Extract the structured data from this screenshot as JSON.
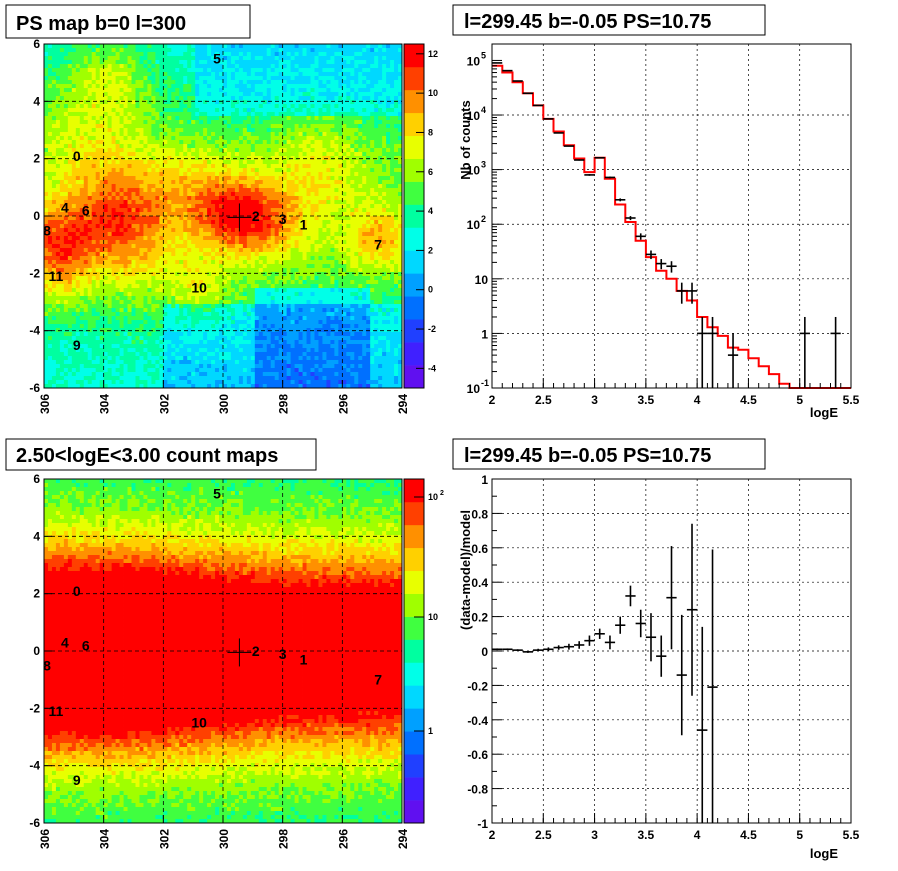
{
  "colors": {
    "palette": [
      "#6010f0",
      "#4020ff",
      "#2040ff",
      "#0070ff",
      "#00a0ff",
      "#00d8ff",
      "#00ffe8",
      "#00ffa0",
      "#40ff40",
      "#a0ff00",
      "#e8ff00",
      "#ffd000",
      "#ff9000",
      "#ff4000",
      "#ff0000"
    ],
    "data_line": "#000000",
    "model_line": "#ff0000"
  },
  "panels": [
    {
      "id": "ps-map",
      "title": "PS map b=0 l=300",
      "x_ticks": [
        "306",
        "304",
        "302",
        "300",
        "298",
        "296",
        "294"
      ],
      "y_ticks": [
        "6",
        "4",
        "2",
        "0",
        "-2",
        "-4",
        "-6"
      ],
      "colorbar_ticks": [
        "12",
        "10",
        "8",
        "6",
        "4",
        "2",
        "0",
        "-2",
        "-4"
      ],
      "sources": [
        {
          "label": "5",
          "l": 300.2,
          "b": 5.5
        },
        {
          "label": "0",
          "l": 304.9,
          "b": 2.1
        },
        {
          "label": "4",
          "l": 305.3,
          "b": 0.3
        },
        {
          "label": "6",
          "l": 304.6,
          "b": 0.2
        },
        {
          "label": "8",
          "l": 305.9,
          "b": -0.5
        },
        {
          "label": "2",
          "l": 298.9,
          "b": 0.0
        },
        {
          "label": "3",
          "l": 298.0,
          "b": -0.1
        },
        {
          "label": "1",
          "l": 297.3,
          "b": -0.3
        },
        {
          "label": "7",
          "l": 294.8,
          "b": -1.0
        },
        {
          "label": "11",
          "l": 305.6,
          "b": -2.1
        },
        {
          "label": "10",
          "l": 300.8,
          "b": -2.5
        },
        {
          "label": "9",
          "l": 304.9,
          "b": -4.5
        }
      ],
      "cross": {
        "l": 299.45,
        "b": -0.05
      }
    },
    {
      "id": "count-map",
      "title": "2.50<logE<3.00 count maps",
      "x_ticks": [
        "306",
        "304",
        "302",
        "300",
        "298",
        "296",
        "294"
      ],
      "y_ticks": [
        "6",
        "4",
        "2",
        "0",
        "-2",
        "-4",
        "-6"
      ],
      "colorbar_ticks": [
        "10",
        "10",
        "1"
      ],
      "colorbar_exps": [
        "2",
        "",
        ""
      ]
    }
  ],
  "chart_data": [
    {
      "type": "line",
      "title": "l=299.45 b=-0.05 PS=10.75",
      "xlabel": "logE",
      "ylabel": "Nb of counts",
      "xlim": [
        2,
        5.5
      ],
      "ylim": [
        0.1,
        200000
      ],
      "log_y": true,
      "grid": true,
      "x_ticks": [
        "2",
        "2.5",
        "3",
        "3.5",
        "4",
        "4.5",
        "5",
        "5.5"
      ],
      "y_ticks": [
        {
          "base": "10",
          "exp": "5"
        },
        {
          "base": "10",
          "exp": "4"
        },
        {
          "base": "10",
          "exp": "3"
        },
        {
          "base": "10",
          "exp": "2"
        },
        {
          "base": "10",
          "exp": ""
        },
        {
          "base": "1",
          "exp": ""
        },
        {
          "base": "10",
          "exp": "-1"
        }
      ],
      "series": [
        {
          "x": [
            2.05,
            2.15,
            2.25,
            2.35,
            2.45,
            2.55,
            2.65,
            2.75,
            2.85,
            2.95,
            3.05,
            3.15,
            3.25,
            3.35,
            3.45,
            3.55,
            3.65,
            3.75,
            3.85,
            3.95,
            4.05,
            4.15,
            4.35,
            5.05,
            5.35
          ],
          "y": [
            90000,
            65000,
            42000,
            25000,
            15000,
            8500,
            4700,
            2700,
            1500,
            800,
            1650,
            720,
            280,
            130,
            60,
            28,
            19,
            17,
            6,
            6,
            1,
            1,
            0.4,
            1,
            1
          ],
          "yerr": [
            300,
            255,
            205,
            158,
            122,
            92,
            69,
            52,
            39,
            28,
            41,
            27,
            17,
            11,
            8,
            5,
            4,
            4,
            2.5,
            2.5,
            1,
            1,
            0.6,
            1,
            1
          ]
        },
        {
          "bins": [
            2.0,
            2.1,
            2.2,
            2.3,
            2.4,
            2.5,
            2.6,
            2.7,
            2.8,
            2.9,
            3.0,
            3.1,
            3.2,
            3.3,
            3.4,
            3.5,
            3.6,
            3.7,
            3.8,
            3.9,
            4.0,
            4.1,
            4.2,
            4.3,
            4.4,
            4.5,
            4.6,
            4.7,
            4.8,
            4.9,
            5.0,
            5.1,
            5.2,
            5.3,
            5.4,
            5.5
          ],
          "values": [
            80000,
            60000,
            40000,
            25000,
            15000,
            8500,
            5000,
            2800,
            1600,
            900,
            1650,
            680,
            230,
            110,
            50,
            25,
            14,
            10,
            6,
            4,
            2,
            1.3,
            0.9,
            0.55,
            0.5,
            0.35,
            0.25,
            0.18,
            0.12,
            0.1,
            0.1,
            0.1,
            0.1,
            0.1,
            0.1
          ]
        }
      ]
    },
    {
      "type": "scatter",
      "title": "l=299.45 b=-0.05 PS=10.75",
      "xlabel": "logE",
      "ylabel": "(data-model)/model",
      "xlim": [
        2,
        5.5
      ],
      "ylim": [
        -1,
        1
      ],
      "grid": true,
      "x_ticks": [
        "2",
        "2.5",
        "3",
        "3.5",
        "4",
        "4.5",
        "5",
        "5.5"
      ],
      "y_ticks": [
        "1",
        "0.8",
        "0.6",
        "0.4",
        "0.2",
        "0",
        "-0.2",
        "-0.4",
        "-0.6",
        "-0.8",
        "-1"
      ],
      "series": [
        {
          "x": [
            2.05,
            2.15,
            2.25,
            2.35,
            2.45,
            2.55,
            2.65,
            2.75,
            2.85,
            2.95,
            3.05,
            3.15,
            3.25,
            3.35,
            3.45,
            3.55,
            3.65,
            3.75,
            3.85,
            3.95,
            4.05,
            4.15
          ],
          "y": [
            0.01,
            0.01,
            0.005,
            -0.005,
            0.005,
            0.01,
            0.02,
            0.025,
            0.035,
            0.06,
            0.1,
            0.05,
            0.15,
            0.32,
            0.16,
            0.08,
            -0.03,
            0.31,
            -0.14,
            0.24,
            -0.46,
            -0.21
          ],
          "yerr": [
            0.005,
            0.005,
            0.005,
            0.006,
            0.008,
            0.011,
            0.013,
            0.017,
            0.022,
            0.03,
            0.03,
            0.04,
            0.05,
            0.06,
            0.08,
            0.14,
            0.12,
            0.3,
            0.35,
            0.5,
            0.6,
            0.8
          ]
        }
      ]
    }
  ]
}
